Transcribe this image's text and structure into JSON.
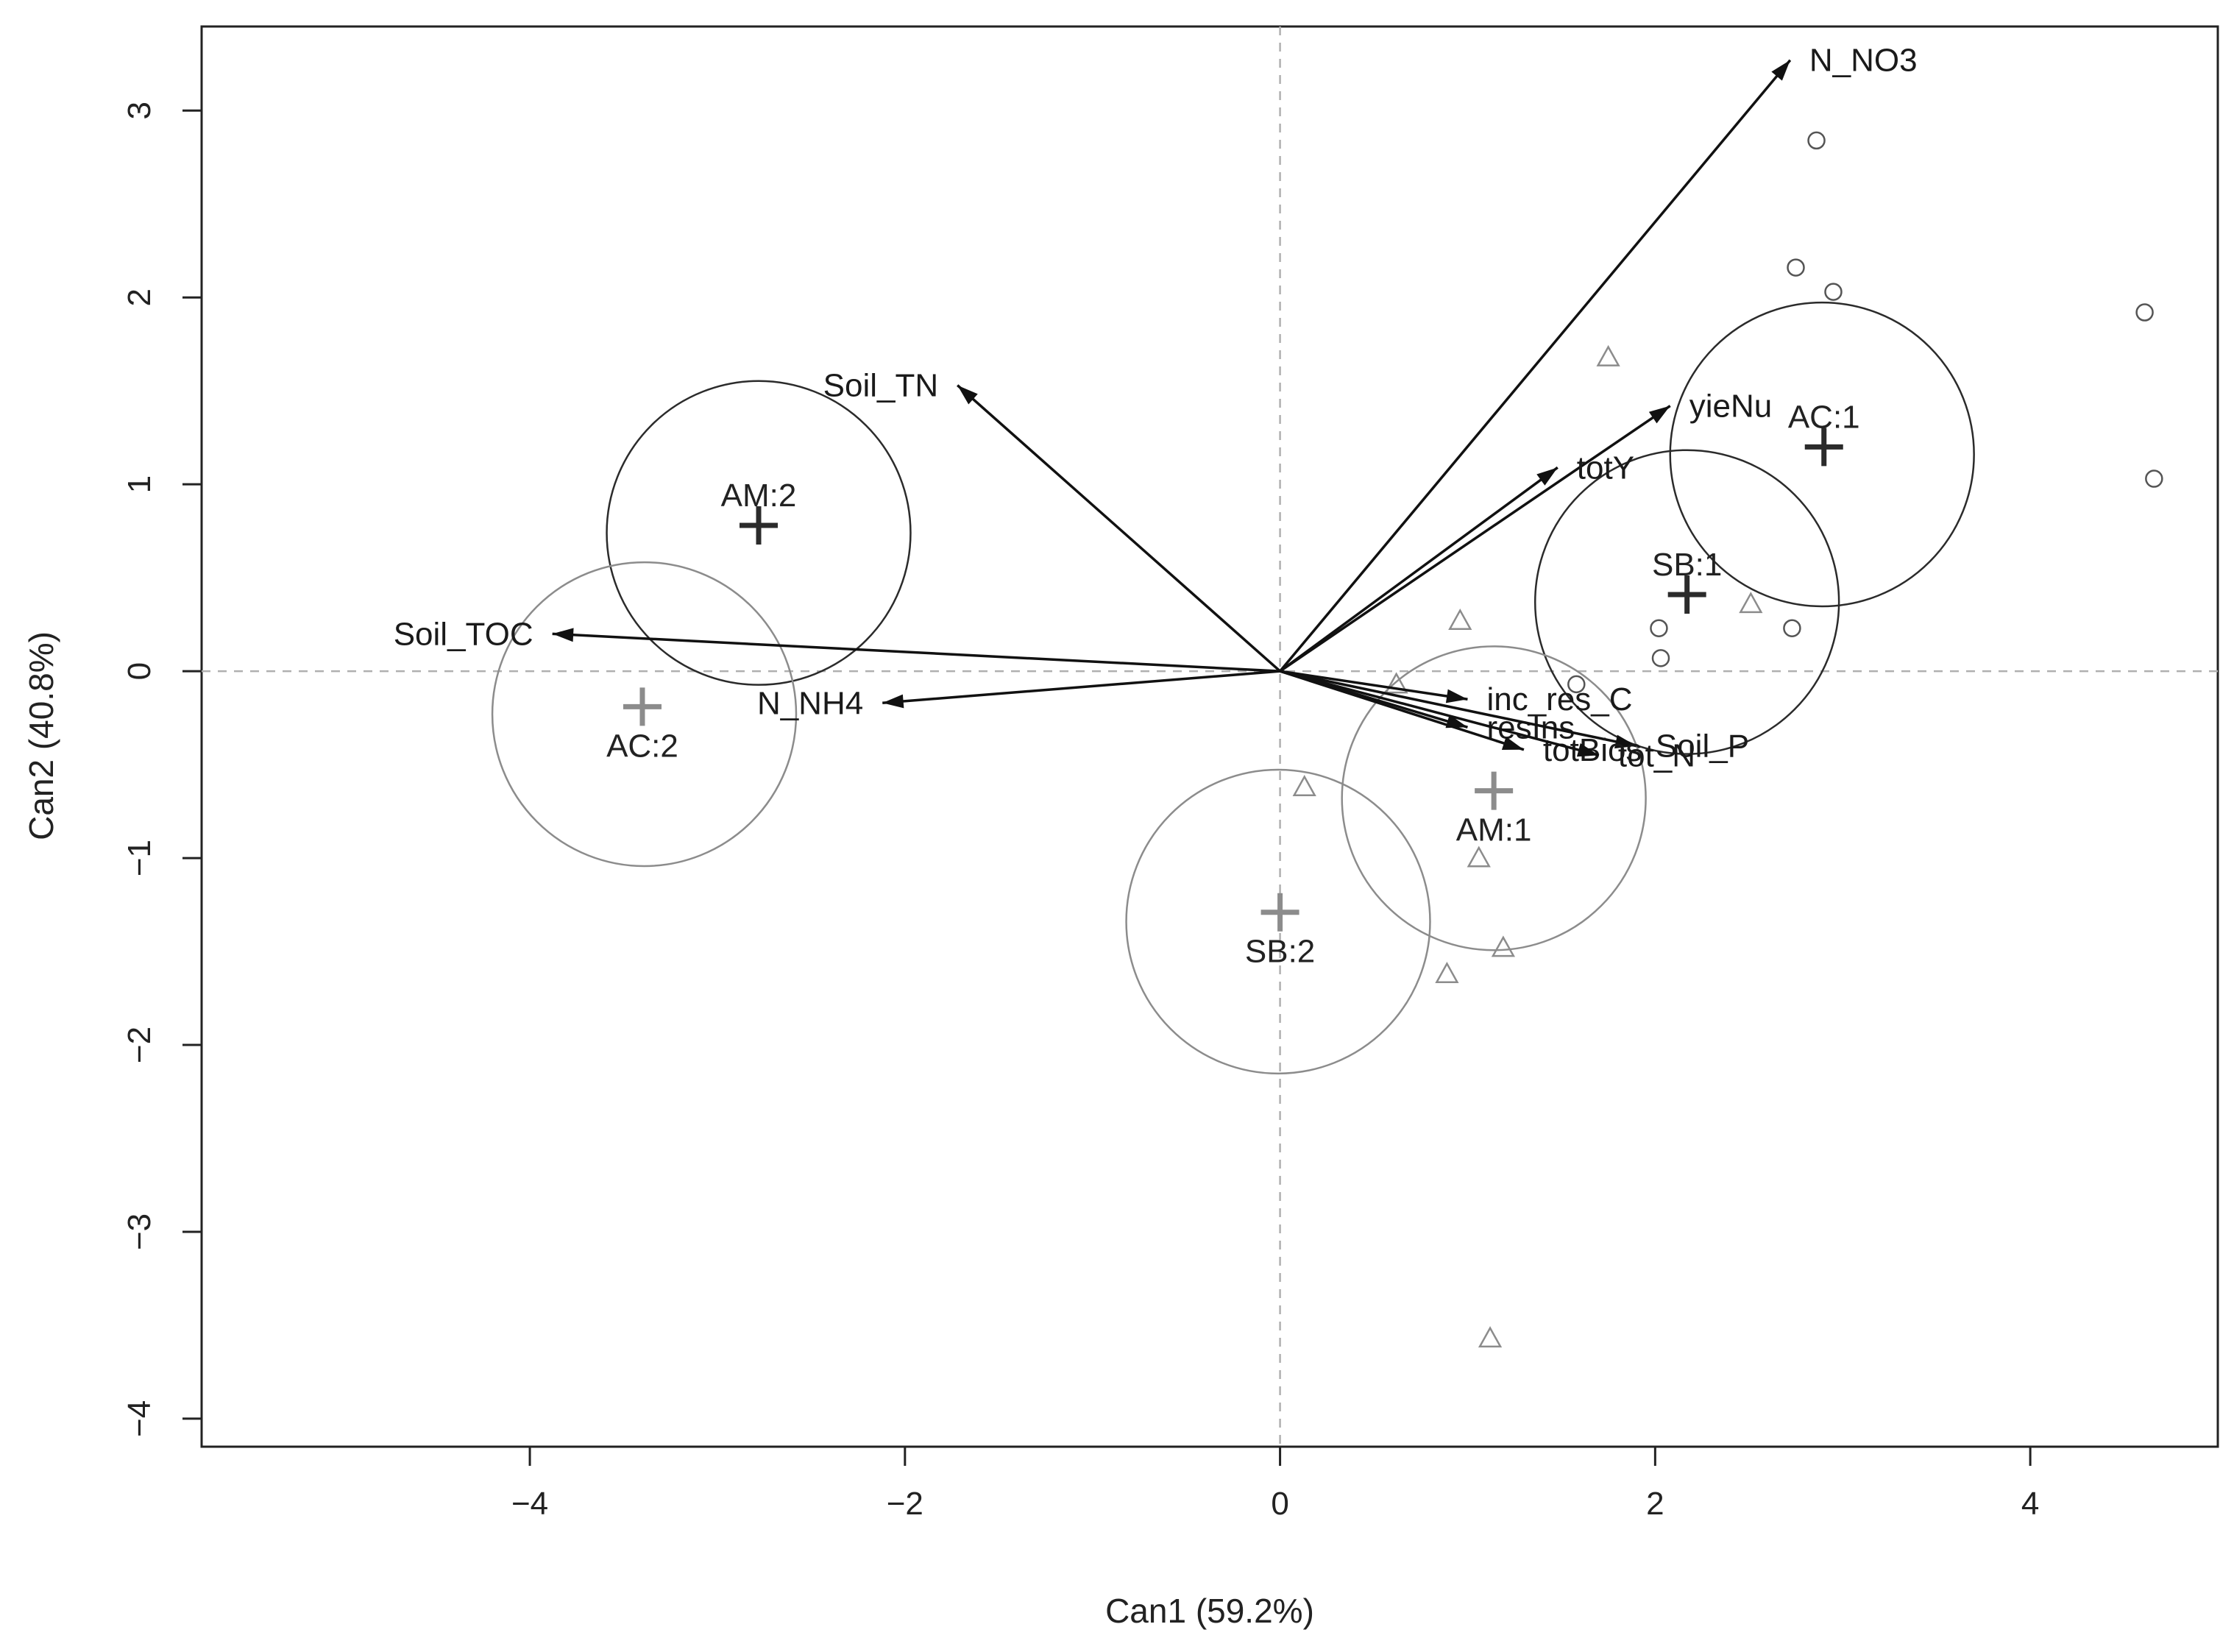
{
  "chart_data": {
    "type": "scatter",
    "subtype": "canonical discriminant biplot",
    "xlabel": "Can1 (59.2%)",
    "ylabel": "Can2 (40.8%)",
    "xlim": [
      -5.75,
      5.0
    ],
    "ylim": [
      -4.15,
      3.45
    ],
    "x_ticks": [
      -4,
      -2,
      0,
      2,
      4
    ],
    "y_ticks": [
      -4,
      -3,
      -2,
      -1,
      0,
      1,
      2,
      3
    ],
    "x_tick_labels": [
      "−4",
      "−2",
      "0",
      "2",
      "4"
    ],
    "y_tick_labels": [
      "−4",
      "−3",
      "−2",
      "−1",
      "0",
      "1",
      "2",
      "3"
    ],
    "reference_lines": {
      "x": 0,
      "y": 0,
      "style": "dashed"
    },
    "vectors": [
      {
        "name": "N_NO3",
        "x": 2.72,
        "y": 3.27,
        "label_pos": "right"
      },
      {
        "name": "Soil_TN",
        "x": -1.72,
        "y": 1.53,
        "label_pos": "left"
      },
      {
        "name": "yieNu",
        "x": 2.08,
        "y": 1.42,
        "label_pos": "right"
      },
      {
        "name": "totY",
        "x": 1.48,
        "y": 1.09,
        "label_pos": "right"
      },
      {
        "name": "Soil_TOC",
        "x": -3.88,
        "y": 0.2,
        "label_pos": "left"
      },
      {
        "name": "N_NH4",
        "x": -2.12,
        "y": -0.17,
        "label_pos": "left"
      },
      {
        "name": "inc_res_C",
        "x": 1.0,
        "y": -0.15,
        "label_pos": "right"
      },
      {
        "name": "resIns",
        "x": 1.0,
        "y": -0.3,
        "label_pos": "right"
      },
      {
        "name": "Soil_P",
        "x": 1.9,
        "y": -0.4,
        "label_pos": "right"
      },
      {
        "name": "totBios",
        "x": 1.3,
        "y": -0.42,
        "label_pos": "right"
      },
      {
        "name": "tot_N",
        "x": 1.7,
        "y": -0.45,
        "label_pos": "right"
      }
    ],
    "groups": [
      {
        "name": "AC:1",
        "x": 2.9,
        "y": 1.2,
        "r": 0.81,
        "cx": 2.89,
        "cy": 1.16,
        "shade": "dark",
        "label_pos": "above"
      },
      {
        "name": "SB:1",
        "x": 2.17,
        "y": 0.41,
        "r": 0.81,
        "cx": 2.17,
        "cy": 0.37,
        "shade": "dark",
        "label_pos": "above"
      },
      {
        "name": "AM:2",
        "x": -2.78,
        "y": 0.78,
        "r": 0.81,
        "cx": -2.78,
        "cy": 0.74,
        "shade": "dark",
        "label_pos": "above"
      },
      {
        "name": "AC:2",
        "x": -3.4,
        "y": -0.19,
        "r": 0.81,
        "cx": -3.39,
        "cy": -0.23,
        "shade": "light",
        "label_pos": "below"
      },
      {
        "name": "AM:1",
        "x": 1.14,
        "y": -0.64,
        "r": 0.81,
        "cx": 1.14,
        "cy": -0.68,
        "shade": "light",
        "label_pos": "below"
      },
      {
        "name": "SB:2",
        "x": 0.0,
        "y": -1.29,
        "r": 0.81,
        "cx": -0.01,
        "cy": -1.34,
        "shade": "light",
        "label_pos": "below"
      }
    ],
    "points_circle": [
      [
        2.86,
        2.84
      ],
      [
        2.75,
        2.16
      ],
      [
        2.95,
        2.03
      ],
      [
        4.61,
        1.92
      ],
      [
        4.66,
        1.03
      ],
      [
        2.02,
        0.23
      ],
      [
        2.03,
        0.07
      ],
      [
        2.73,
        0.23
      ],
      [
        1.58,
        -0.07
      ]
    ],
    "points_triangle": [
      [
        1.75,
        1.68
      ],
      [
        0.96,
        0.27
      ],
      [
        2.51,
        0.36
      ],
      [
        0.62,
        -0.07
      ],
      [
        0.13,
        -0.62
      ],
      [
        1.06,
        -1.0
      ],
      [
        1.19,
        -1.48
      ],
      [
        0.89,
        -1.62
      ],
      [
        1.12,
        -3.57
      ]
    ],
    "colors": {
      "dark": "#2b2b2b",
      "light": "#8c8c8c",
      "axis": "#222222",
      "reference": "#b0b0b0"
    }
  }
}
